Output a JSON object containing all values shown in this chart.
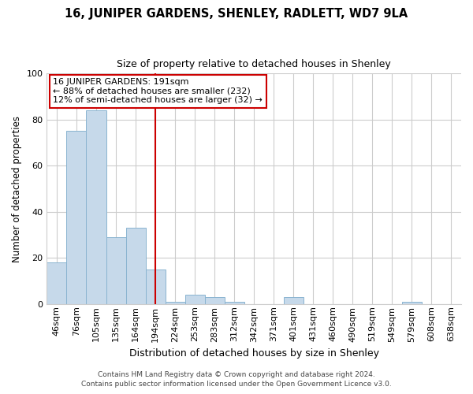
{
  "title": "16, JUNIPER GARDENS, SHENLEY, RADLETT, WD7 9LA",
  "subtitle": "Size of property relative to detached houses in Shenley",
  "xlabel": "Distribution of detached houses by size in Shenley",
  "ylabel": "Number of detached properties",
  "bar_labels": [
    "46sqm",
    "76sqm",
    "105sqm",
    "135sqm",
    "164sqm",
    "194sqm",
    "224sqm",
    "253sqm",
    "283sqm",
    "312sqm",
    "342sqm",
    "371sqm",
    "401sqm",
    "431sqm",
    "460sqm",
    "490sqm",
    "519sqm",
    "549sqm",
    "579sqm",
    "608sqm",
    "638sqm"
  ],
  "bar_values": [
    18,
    75,
    84,
    29,
    33,
    15,
    1,
    4,
    3,
    1,
    0,
    0,
    3,
    0,
    0,
    0,
    0,
    0,
    1,
    0,
    0
  ],
  "bar_color": "#c6d9ea",
  "bar_edge_color": "#8ab4d0",
  "vline_x": 5,
  "vline_color": "#cc0000",
  "annotation_text": "16 JUNIPER GARDENS: 191sqm\n← 88% of detached houses are smaller (232)\n12% of semi-detached houses are larger (32) →",
  "annotation_box_color": "#ffffff",
  "annotation_box_edge_color": "#cc0000",
  "ylim": [
    0,
    100
  ],
  "yticks": [
    0,
    20,
    40,
    60,
    80,
    100
  ],
  "footer1": "Contains HM Land Registry data © Crown copyright and database right 2024.",
  "footer2": "Contains public sector information licensed under the Open Government Licence v3.0.",
  "background_color": "#ffffff",
  "grid_color": "#cccccc",
  "title_fontsize": 10.5,
  "subtitle_fontsize": 9,
  "xlabel_fontsize": 9,
  "ylabel_fontsize": 8.5,
  "tick_fontsize": 8,
  "annotation_fontsize": 8,
  "footer_fontsize": 6.5
}
